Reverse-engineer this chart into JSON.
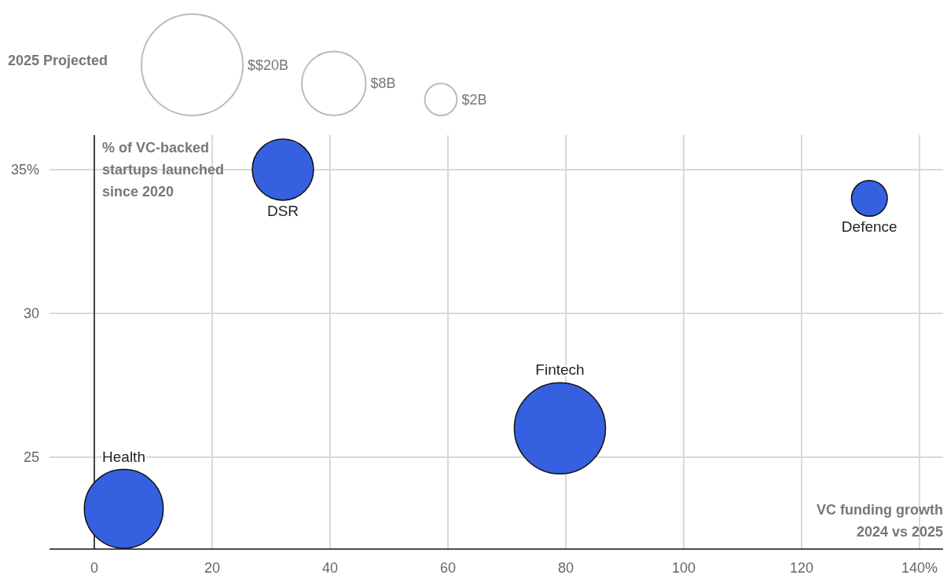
{
  "chart_data": {
    "type": "bubble",
    "legend_title": "2025 Projected",
    "ylabel": "% of VC-backed startups launched since 2020",
    "xlabel": "VC funding growth 2024 vs 2025",
    "xlim": [
      -7.6,
      144
    ],
    "xticks": [
      0,
      20,
      40,
      60,
      80,
      100,
      120,
      {
        "value": 140,
        "label": "140%"
      }
    ],
    "ylim": [
      21.8,
      36.2
    ],
    "yticks": [
      25,
      30,
      {
        "value": 35,
        "label": "35%"
      }
    ],
    "grid": true,
    "size_legend": [
      {
        "value": 20,
        "label": "$$20B"
      },
      {
        "value": 8,
        "label": "$8B"
      },
      {
        "value": 2,
        "label": "$2B"
      }
    ],
    "series": [
      {
        "name": "DSR",
        "color": "#3560e0",
        "x": [
          32
        ],
        "values": [
          35
        ],
        "sizes": [
          7.3
        ]
      },
      {
        "name": "Defence",
        "color": "#3560e0",
        "x": [
          131.5
        ],
        "values": [
          34
        ],
        "sizes": [
          2.5
        ]
      },
      {
        "name": "Fintech",
        "color": "#3560e0",
        "x": [
          79
        ],
        "values": [
          26
        ],
        "sizes": [
          16.2
        ]
      },
      {
        "name": "Health",
        "color": "#3560e0",
        "x": [
          5
        ],
        "values": [
          23.2
        ],
        "sizes": [
          12.1
        ]
      }
    ]
  }
}
